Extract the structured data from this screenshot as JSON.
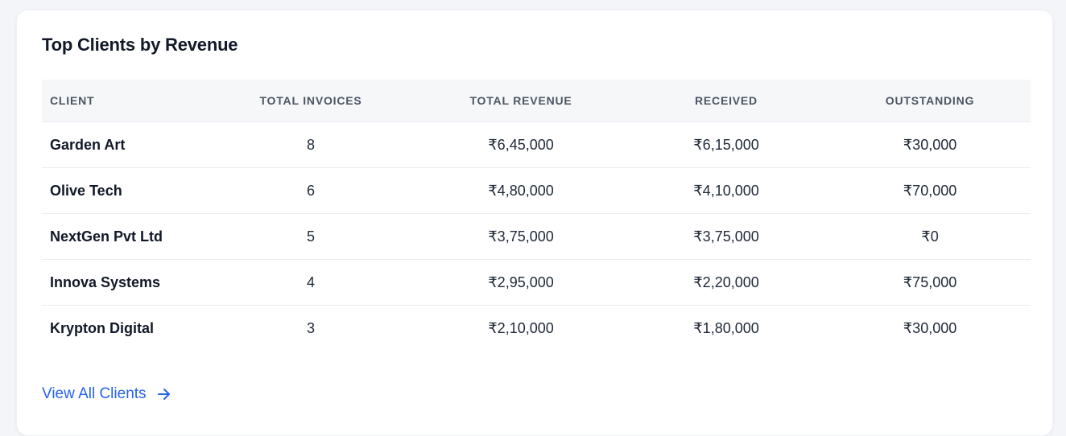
{
  "card": {
    "title": "Top Clients by Revenue"
  },
  "table": {
    "headers": {
      "client": "CLIENT",
      "total_invoices": "TOTAL INVOICES",
      "total_revenue": "TOTAL REVENUE",
      "received": "RECEIVED",
      "outstanding": "OUTSTANDING"
    },
    "rows": [
      {
        "client": "Garden Art",
        "total_invoices": "8",
        "total_revenue": "₹6,45,000",
        "received": "₹6,15,000",
        "outstanding": "₹30,000"
      },
      {
        "client": "Olive Tech",
        "total_invoices": "6",
        "total_revenue": "₹4,80,000",
        "received": "₹4,10,000",
        "outstanding": "₹70,000"
      },
      {
        "client": "NextGen Pvt Ltd",
        "total_invoices": "5",
        "total_revenue": "₹3,75,000",
        "received": "₹3,75,000",
        "outstanding": "₹0"
      },
      {
        "client": "Innova Systems",
        "total_invoices": "4",
        "total_revenue": "₹2,95,000",
        "received": "₹2,20,000",
        "outstanding": "₹75,000"
      },
      {
        "client": "Krypton Digital",
        "total_invoices": "3",
        "total_revenue": "₹2,10,000",
        "received": "₹1,80,000",
        "outstanding": "₹30,000"
      }
    ]
  },
  "footer": {
    "view_all_label": "View All Clients",
    "view_all_icon": "arrow-right-icon"
  },
  "colors": {
    "accent": "#2563eb",
    "text_primary": "#111827",
    "header_bg": "#f6f7f9"
  }
}
